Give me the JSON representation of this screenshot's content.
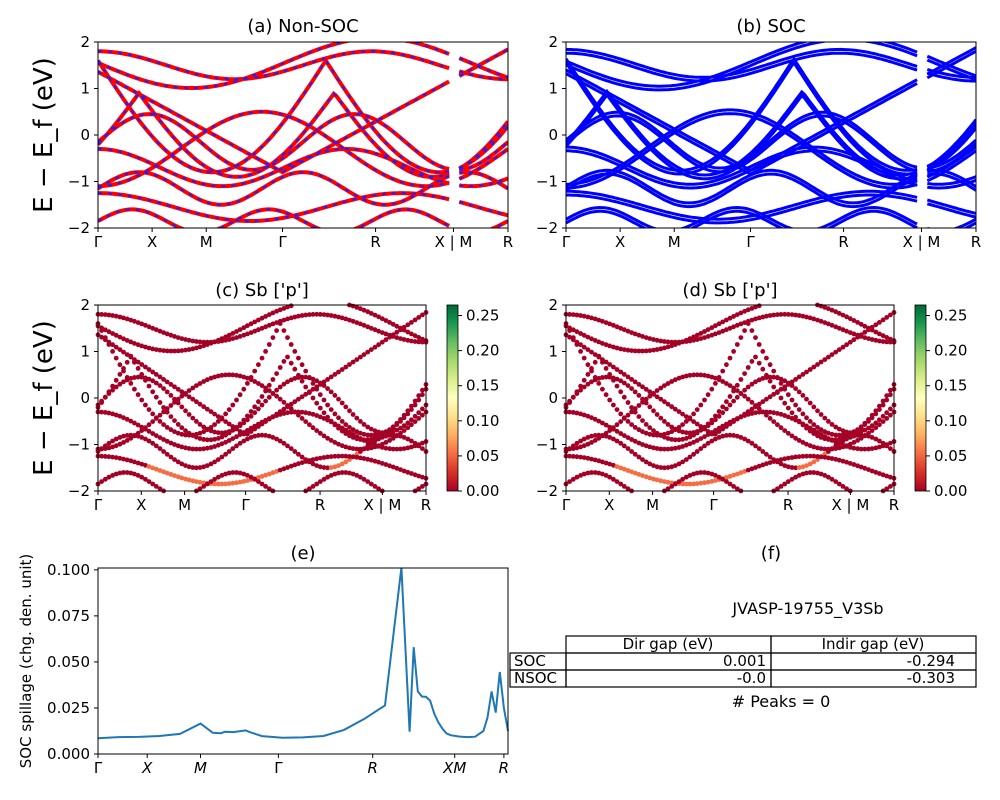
{
  "figure": {
    "ylabel_main": "E − E_f (eV)"
  },
  "colorbar_ticks": [
    "0.25",
    "0.20",
    "0.15",
    "0.10",
    "0.05",
    "0.00"
  ],
  "colors": {
    "nonsoc_red": "#ff0000",
    "nonsoc_blue_dash": "#1f1fff",
    "soc_blue": "#0000ff",
    "spillage_line": "#1f77b4",
    "proj_dark": "#a50026",
    "proj_orange": "#f46d43"
  },
  "chart_data": [
    {
      "id": "a",
      "type": "line",
      "title": "(a) Non-SOC",
      "ylabel": "E − E_f (eV)",
      "ylim": [
        -2,
        2
      ],
      "yticks": [
        "2",
        "1",
        "0",
        "−1",
        "−2"
      ],
      "xticks": [
        "Γ",
        "X",
        "M",
        "Γ",
        "R",
        "X | M",
        "R"
      ],
      "series_note": "spin-up (red) and spin-down (blue dashed) bands overlap"
    },
    {
      "id": "b",
      "type": "line",
      "title": "(b) SOC",
      "ylim": [
        -2,
        2
      ],
      "yticks": [
        "2",
        "1",
        "0",
        "−1",
        "−2"
      ],
      "xticks": [
        "Γ",
        "X",
        "M",
        "Γ",
        "R",
        "X | M",
        "R"
      ]
    },
    {
      "id": "c",
      "type": "scatter",
      "title": "(c)  Sb ['p']",
      "ylabel": "E − E_f (eV)",
      "ylim": [
        -2,
        2
      ],
      "yticks": [
        "2",
        "1",
        "0",
        "−1",
        "−2"
      ],
      "xticks": [
        "Γ",
        "X",
        "M",
        "Γ",
        "R",
        "X | M",
        "R"
      ],
      "colorbar_range": [
        0.0,
        0.26
      ]
    },
    {
      "id": "d",
      "type": "scatter",
      "title": "(d) Sb ['p']",
      "ylim": [
        -2,
        2
      ],
      "yticks": [
        "2",
        "1",
        "0",
        "−1",
        "−2"
      ],
      "xticks": [
        "Γ",
        "X",
        "M",
        "Γ",
        "R",
        "X | M",
        "R"
      ],
      "colorbar_range": [
        0.0,
        0.26
      ]
    },
    {
      "id": "e",
      "type": "line",
      "title": "(e)",
      "ylabel": "SOC spillage (chg. den. unit)",
      "ylim": [
        0.0,
        0.101
      ],
      "yticks": [
        "0.100",
        "0.075",
        "0.050",
        "0.025",
        "0.000"
      ],
      "xticks": [
        "Γ",
        "X",
        "M",
        "Γ",
        "R",
        "XM",
        "R"
      ],
      "x": [
        0,
        0.05,
        0.1,
        0.15,
        0.2,
        0.25,
        0.28,
        0.3,
        0.31,
        0.33,
        0.36,
        0.37,
        0.38,
        0.4,
        0.45,
        0.5,
        0.55,
        0.6,
        0.65,
        0.7,
        0.74,
        0.76,
        0.77,
        0.78,
        0.79,
        0.8,
        0.81,
        0.82,
        0.83,
        0.84,
        0.85,
        0.86,
        0.88,
        0.9,
        0.92,
        0.94,
        0.95,
        0.96,
        0.97,
        0.98,
        0.99,
        1.0
      ],
      "y": [
        0.0085,
        0.0092,
        0.0093,
        0.0098,
        0.0109,
        0.0165,
        0.0115,
        0.0113,
        0.0121,
        0.0119,
        0.0128,
        0.0119,
        0.0112,
        0.0097,
        0.0088,
        0.009,
        0.0098,
        0.0131,
        0.0191,
        0.0264,
        0.1012,
        0.0121,
        0.058,
        0.034,
        0.0312,
        0.031,
        0.029,
        0.022,
        0.0172,
        0.0138,
        0.0112,
        0.0102,
        0.0095,
        0.0092,
        0.0094,
        0.0125,
        0.0198,
        0.034,
        0.0225,
        0.0445,
        0.025,
        0.0125
      ]
    },
    {
      "id": "f",
      "type": "table",
      "title": "(f)",
      "caption": "JVASP-19755_V3Sb",
      "columns": [
        "Dir gap (eV)",
        "Indir gap (eV)"
      ],
      "rows": [
        {
          "label": "SOC",
          "values": [
            "0.001",
            "-0.294"
          ]
        },
        {
          "label": "NSOC",
          "values": [
            "-0.0",
            "-0.303"
          ]
        }
      ],
      "footer": "# Peaks = 0"
    }
  ]
}
